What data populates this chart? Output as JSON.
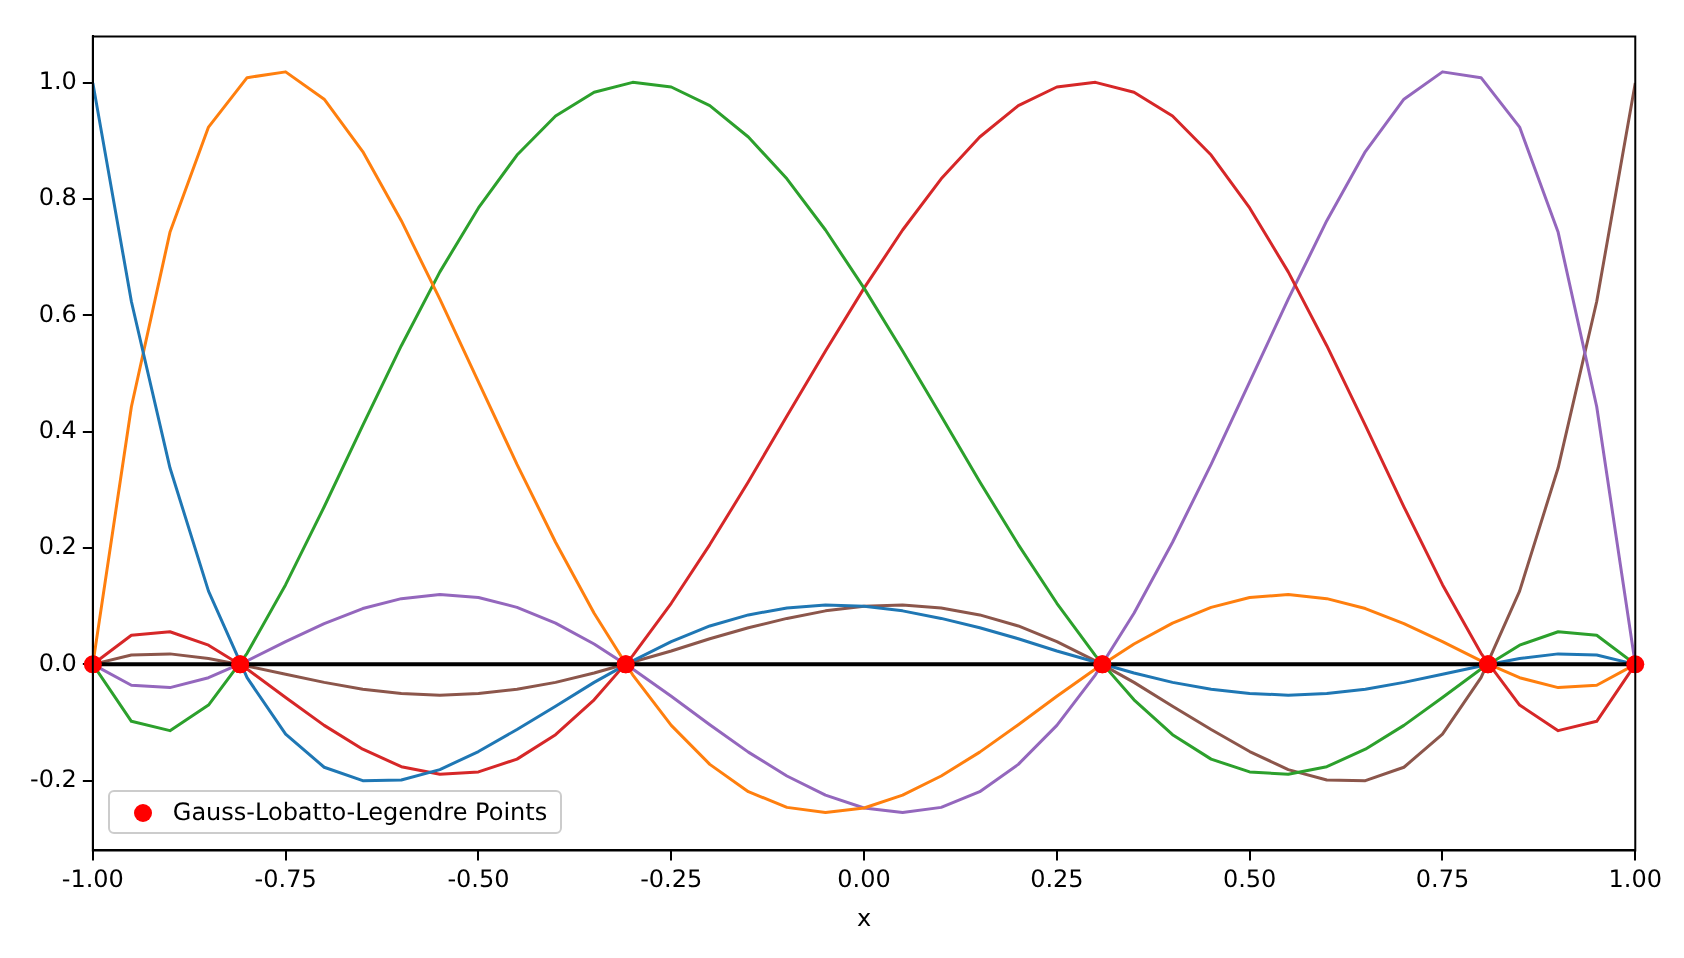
{
  "chart_data": {
    "type": "line",
    "xlabel": "x",
    "x": [
      -1,
      -0.95,
      -0.9,
      -0.85,
      -0.8,
      -0.75,
      -0.7,
      -0.65,
      -0.6,
      -0.55,
      -0.5,
      -0.45,
      -0.4,
      -0.35,
      -0.3,
      -0.25,
      -0.2,
      -0.15,
      -0.1,
      -0.05,
      0,
      0.05,
      0.1,
      0.15,
      0.2,
      0.25,
      0.3,
      0.35,
      0.4,
      0.45,
      0.5,
      0.55,
      0.6,
      0.65,
      0.7,
      0.75,
      0.8,
      0.85,
      0.9,
      0.95,
      1
    ],
    "series": [
      {
        "color": "#1f77b4",
        "values": [
          1.0,
          0.624,
          0.338,
          0.126,
          -0.023,
          -0.12,
          -0.177,
          -0.2,
          -0.199,
          -0.181,
          -0.15,
          -0.112,
          -0.072,
          -0.031,
          0.006,
          0.039,
          0.066,
          0.085,
          0.097,
          0.102,
          0.1,
          0.092,
          0.079,
          0.063,
          0.044,
          0.023,
          0.004,
          -0.015,
          -0.031,
          -0.043,
          -0.05,
          -0.053,
          -0.05,
          -0.043,
          -0.031,
          -0.017,
          -0.003,
          0.01,
          0.018,
          0.016,
          0
        ]
      },
      {
        "color": "#ff7f0e",
        "values": [
          0,
          0.443,
          0.743,
          0.924,
          1.009,
          1.019,
          0.972,
          0.882,
          0.763,
          0.628,
          0.486,
          0.344,
          0.21,
          0.088,
          -0.018,
          -0.105,
          -0.172,
          -0.219,
          -0.246,
          -0.255,
          -0.247,
          -0.225,
          -0.192,
          -0.151,
          -0.104,
          -0.055,
          -0.008,
          0.035,
          0.071,
          0.098,
          0.115,
          0.12,
          0.113,
          0.096,
          0.07,
          0.039,
          0.006,
          -0.023,
          -0.04,
          -0.036,
          0
        ]
      },
      {
        "color": "#2ca02c",
        "values": [
          0,
          -0.098,
          -0.114,
          -0.07,
          0.019,
          0.137,
          0.271,
          0.411,
          0.548,
          0.675,
          0.785,
          0.876,
          0.943,
          0.984,
          1.001,
          0.993,
          0.961,
          0.907,
          0.835,
          0.747,
          0.647,
          0.539,
          0.427,
          0.314,
          0.206,
          0.105,
          0.015,
          -0.061,
          -0.121,
          -0.163,
          -0.185,
          -0.189,
          -0.176,
          -0.146,
          -0.105,
          -0.057,
          -0.008,
          0.033,
          0.056,
          0.05,
          0
        ]
      },
      {
        "color": "#d62728",
        "values": [
          0,
          0.05,
          0.056,
          0.033,
          -0.008,
          -0.057,
          -0.105,
          -0.146,
          -0.176,
          -0.189,
          -0.185,
          -0.163,
          -0.121,
          -0.061,
          0.015,
          0.105,
          0.206,
          0.314,
          0.427,
          0.539,
          0.647,
          0.747,
          0.835,
          0.907,
          0.961,
          0.993,
          1.001,
          0.984,
          0.943,
          0.876,
          0.785,
          0.675,
          0.548,
          0.411,
          0.271,
          0.137,
          0.019,
          -0.07,
          -0.114,
          -0.098,
          0
        ]
      },
      {
        "color": "#9467bd",
        "values": [
          0,
          -0.036,
          -0.04,
          -0.023,
          0.006,
          0.039,
          0.07,
          0.096,
          0.113,
          0.12,
          0.115,
          0.098,
          0.071,
          0.035,
          -0.008,
          -0.055,
          -0.104,
          -0.151,
          -0.192,
          -0.225,
          -0.247,
          -0.255,
          -0.246,
          -0.219,
          -0.172,
          -0.105,
          -0.018,
          0.088,
          0.21,
          0.344,
          0.486,
          0.628,
          0.763,
          0.882,
          0.972,
          1.019,
          1.009,
          0.924,
          0.743,
          0.443,
          0
        ]
      },
      {
        "color": "#8c564b",
        "values": [
          0,
          0.016,
          0.018,
          0.01,
          -0.003,
          -0.017,
          -0.031,
          -0.043,
          -0.05,
          -0.053,
          -0.05,
          -0.043,
          -0.031,
          -0.015,
          0.004,
          0.023,
          0.044,
          0.063,
          0.079,
          0.092,
          0.1,
          0.102,
          0.097,
          0.085,
          0.066,
          0.039,
          0.006,
          -0.031,
          -0.072,
          -0.112,
          -0.15,
          -0.181,
          -0.199,
          -0.2,
          -0.177,
          -0.12,
          -0.023,
          0.126,
          0.338,
          0.624,
          1.0
        ]
      },
      {
        "type": "scatter",
        "name": "Gauss-Lobatto-Legendre Points",
        "color": "#ff0000",
        "marker": "circle",
        "x": [
          -1,
          -0.809,
          -0.309,
          0.309,
          0.809,
          1
        ],
        "values": [
          0,
          0,
          0,
          0,
          0,
          0
        ]
      }
    ],
    "ref_lines": [
      {
        "axis": "y",
        "value": 0,
        "color": "#000000"
      }
    ],
    "xlim": [
      -1,
      1
    ],
    "xticks": [
      {
        "value": -1,
        "label": "-1.00"
      },
      {
        "value": -0.75,
        "label": "-0.75"
      },
      {
        "value": -0.5,
        "label": "-0.50"
      },
      {
        "value": -0.25,
        "label": "-0.25"
      },
      {
        "value": 0,
        "label": "0.00"
      },
      {
        "value": 0.25,
        "label": "0.25"
      },
      {
        "value": 0.5,
        "label": "0.50"
      },
      {
        "value": 0.75,
        "label": "0.75"
      },
      {
        "value": 1,
        "label": "1.00"
      }
    ],
    "ylim": [
      -0.32,
      1.08
    ],
    "yticks": [
      {
        "value": -0.2,
        "label": "-0.2"
      },
      {
        "value": 0,
        "label": "0.0"
      },
      {
        "value": 0.2,
        "label": "0.2"
      },
      {
        "value": 0.4,
        "label": "0.4"
      },
      {
        "value": 0.6,
        "label": "0.6"
      },
      {
        "value": 0.8,
        "label": "0.8"
      },
      {
        "value": 1,
        "label": "1.0"
      }
    ],
    "legend": "lower left"
  }
}
